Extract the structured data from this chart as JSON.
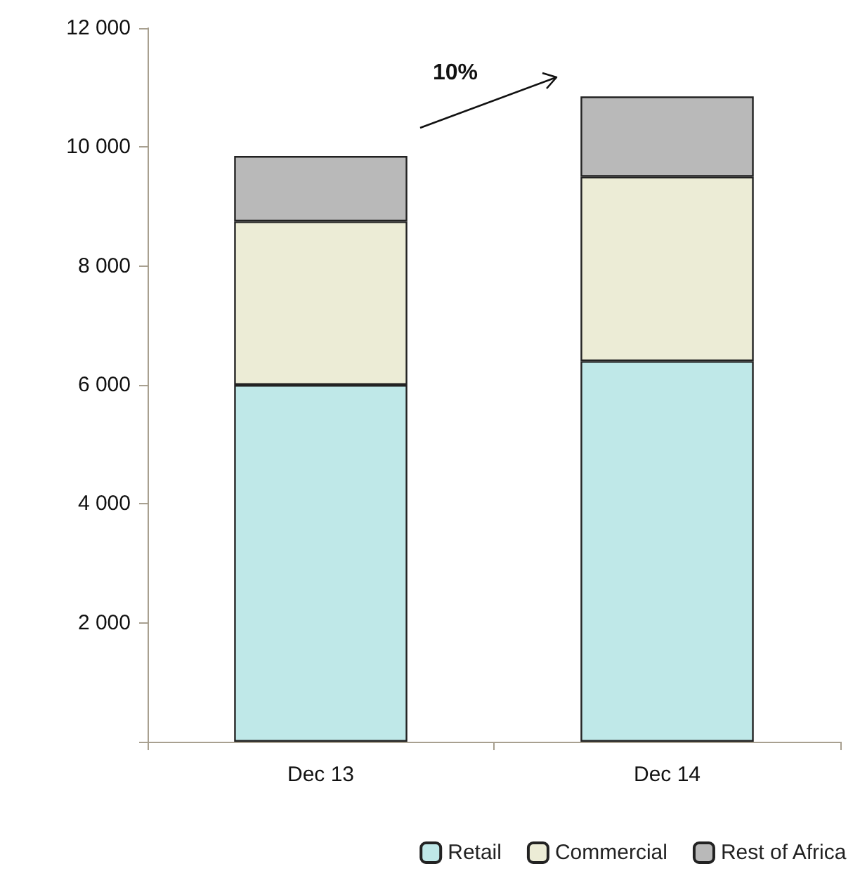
{
  "chart_data": {
    "type": "bar",
    "stacked": true,
    "categories": [
      "Dec 13",
      "Dec 14"
    ],
    "series": [
      {
        "name": "Retail",
        "color": "#bfe8e8",
        "values": [
          6000,
          6400
        ]
      },
      {
        "name": "Commercial",
        "color": "#ececd6",
        "values": [
          2750,
          3100
        ]
      },
      {
        "name": "Rest of Africa",
        "color": "#b9b9b9",
        "values": [
          1100,
          1350
        ]
      }
    ],
    "ylim": [
      0,
      12000
    ],
    "yticks": [
      {
        "value": 0,
        "label": null
      },
      {
        "value": 2000,
        "label": "2 000"
      },
      {
        "value": 4000,
        "label": "4 000"
      },
      {
        "value": 6000,
        "label": "6 000"
      },
      {
        "value": 8000,
        "label": "8 000"
      },
      {
        "value": 10000,
        "label": "10 000"
      },
      {
        "value": 12000,
        "label": "12 000"
      }
    ],
    "annotations": [
      "10%"
    ],
    "grid": false,
    "legend": "bottom"
  }
}
